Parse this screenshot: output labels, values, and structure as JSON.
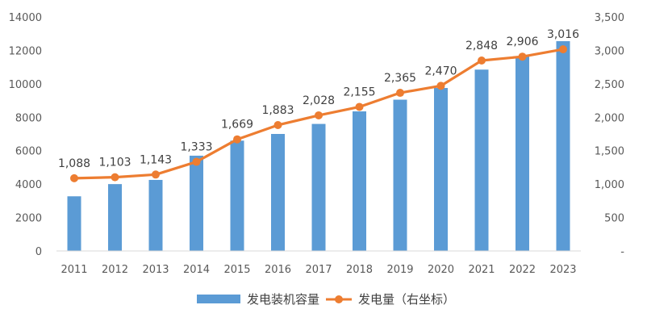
{
  "chart_data": {
    "type": "bar+line",
    "categories": [
      "2011",
      "2012",
      "2013",
      "2014",
      "2015",
      "2016",
      "2017",
      "2018",
      "2019",
      "2020",
      "2021",
      "2022",
      "2023"
    ],
    "series": [
      {
        "name": "发电装机容量",
        "type": "bar",
        "axis": "left",
        "color": "#5B9BD5",
        "values": [
          3270,
          4000,
          4250,
          5700,
          6600,
          7000,
          7600,
          8350,
          9050,
          9750,
          10850,
          11650,
          12550
        ]
      },
      {
        "name": "发电量（右坐标）",
        "type": "line",
        "axis": "right",
        "color": "#ED7D31",
        "values": [
          1088,
          1103,
          1143,
          1333,
          1669,
          1883,
          2028,
          2155,
          2365,
          2470,
          2848,
          2906,
          3016
        ],
        "labels": [
          "1,088",
          "1,103",
          "1,143",
          "1,333",
          "1,669",
          "1,883",
          "2,028",
          "2,155",
          "2,365",
          "2,470",
          "2,848",
          "2,906",
          "3,016"
        ]
      }
    ],
    "y_left": {
      "min": 0,
      "max": 14000,
      "step": 2000,
      "ticks": [
        "0",
        "2000",
        "4000",
        "6000",
        "8000",
        "10000",
        "12000",
        "14000"
      ]
    },
    "y_right": {
      "min": 0,
      "max": 3500,
      "step": 500,
      "ticks": [
        "-",
        "500",
        "1,000",
        "1,500",
        "2,000",
        "2,500",
        "3,000",
        "3,500"
      ]
    },
    "legend_position": "bottom",
    "grid": false
  }
}
